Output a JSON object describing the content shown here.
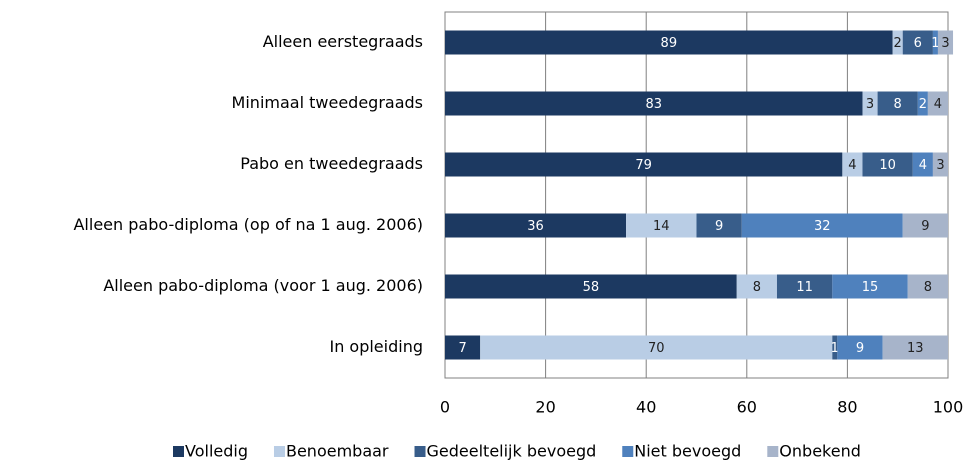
{
  "chart_data": {
    "type": "stacked_barh",
    "categories": [
      "Alleen eerstegraads",
      "Minimaal tweedegraads",
      "Pabo en tweedegraads",
      "Alleen pabo-diploma (op of na 1 aug. 2006)",
      "Alleen pabo-diploma (voor 1 aug. 2006)",
      "In opleiding"
    ],
    "series": [
      {
        "name": "Volledig",
        "color": "#1c3961",
        "label_color": "#ffffff",
        "values": [
          89,
          83,
          79,
          36,
          58,
          7
        ]
      },
      {
        "name": "Benoembaar",
        "color": "#b9cde5",
        "label_color": "#222222",
        "values": [
          2,
          3,
          4,
          14,
          8,
          70
        ]
      },
      {
        "name": "Gedeeltelijk bevoegd",
        "color": "#385d8a",
        "label_color": "#ffffff",
        "values": [
          6,
          8,
          10,
          9,
          11,
          1
        ]
      },
      {
        "name": "Niet bevoegd",
        "color": "#4f81bd",
        "label_color": "#ffffff",
        "values": [
          1,
          2,
          4,
          32,
          15,
          9
        ]
      },
      {
        "name": "Onbekend",
        "color": "#a7b4ca",
        "label_color": "#222222",
        "values": [
          3,
          4,
          3,
          9,
          8,
          13
        ]
      }
    ],
    "xlim": [
      0,
      100
    ],
    "xticks": [
      0,
      20,
      40,
      60,
      80,
      100
    ],
    "grid": true,
    "legend": "bottom"
  }
}
